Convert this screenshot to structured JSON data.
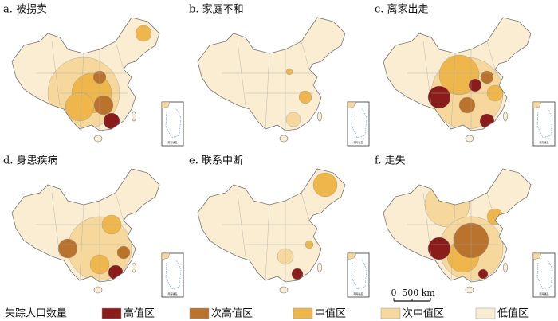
{
  "panels": [
    {
      "title": "a. 被拐卖"
    },
    {
      "title": "b. 家庭不和"
    },
    {
      "title": "c. 离家出走"
    },
    {
      "title": "d. 身患疾病"
    },
    {
      "title": "e. 联系中断"
    },
    {
      "title": "f. 走失"
    }
  ],
  "inset_label": "南海诸岛",
  "scale_bar": {
    "start": "0",
    "end": "500 km"
  },
  "legend": {
    "title": "失踪人口数量",
    "items": [
      {
        "label": "高值区",
        "color": "#8b1c1c"
      },
      {
        "label": "次高值区",
        "color": "#b9732c"
      },
      {
        "label": "中值区",
        "color": "#efb64b"
      },
      {
        "label": "次中值区",
        "color": "#f6d89c"
      },
      {
        "label": "低值区",
        "color": "#fbedd2"
      }
    ]
  }
}
